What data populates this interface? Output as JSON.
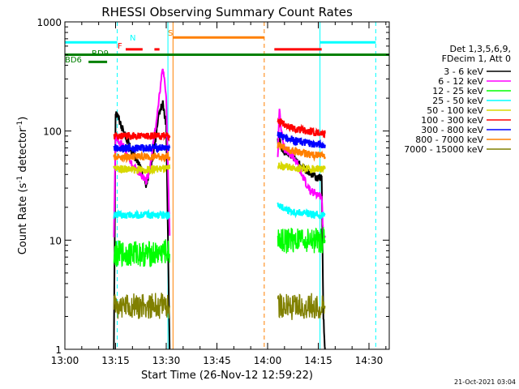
{
  "chart_data": {
    "type": "line",
    "title": "RHESSI Observing Summary Count Rates",
    "xlabel": "Start Time (26-Nov-12 12:59:22)",
    "ylabel_main": "Count Rate (s",
    "ylabel_sup1": "-1",
    "ylabel_mid": " detector",
    "ylabel_sup2": "-1",
    "ylabel_end": ")",
    "x_unit": "minutes since 13:00",
    "xlim": [
      0,
      96
    ],
    "ylim": [
      1,
      1000
    ],
    "yscale": "log",
    "grid": false,
    "x_ticks": [
      {
        "label": "13:00",
        "value": 0
      },
      {
        "label": "13:15",
        "value": 15
      },
      {
        "label": "13:30",
        "value": 30
      },
      {
        "label": "13:45",
        "value": 45
      },
      {
        "label": "14:00",
        "value": 60
      },
      {
        "label": "14:15",
        "value": 75
      },
      {
        "label": "14:30",
        "value": 90
      }
    ],
    "y_ticks": [
      {
        "label": "1",
        "value": 1
      },
      {
        "label": "10",
        "value": 10
      },
      {
        "label": "100",
        "value": 100
      },
      {
        "label": "1000",
        "value": 1000
      }
    ],
    "legend": {
      "placement": "right",
      "header": [
        "Det 1,3,5,6,9,",
        "FDecim 1, Att 0"
      ]
    },
    "series": [
      {
        "name": "3 - 6 keV",
        "color": "#000000",
        "segments": [
          {
            "x": [
              14.5,
              15,
              16,
              17,
              18,
              19,
              20,
              21,
              22,
              23,
              24,
              25,
              26,
              27,
              28,
              29,
              30,
              31
            ],
            "y": [
              1,
              150,
              130,
              105,
              90,
              75,
              62,
              55,
              50,
              40,
              32,
              40,
              60,
              90,
              150,
              180,
              110,
              1
            ]
          },
          {
            "x": [
              63,
              63.5,
              64,
              65,
              66,
              67,
              68,
              69,
              70,
              71,
              72,
              73,
              74,
              75,
              76,
              76.5,
              77
            ],
            "y": [
              80,
              85,
              70,
              65,
              65,
              60,
              55,
              52,
              48,
              45,
              42,
              40,
              38,
              37,
              38,
              2,
              1
            ]
          }
        ]
      },
      {
        "name": "6 - 12 keV",
        "color": "#ff00ff",
        "segments": [
          {
            "x": [
              14.5,
              15,
              16,
              17,
              18,
              19,
              20,
              21,
              22,
              23,
              24,
              25,
              26,
              27,
              28,
              29,
              30,
              31
            ],
            "y": [
              11,
              90,
              80,
              75,
              65,
              55,
              48,
              45,
              42,
              38,
              35,
              42,
              70,
              120,
              220,
              380,
              200,
              11
            ]
          },
          {
            "x": [
              63,
              63.5,
              64,
              65,
              66,
              67,
              68,
              69,
              70,
              71,
              72,
              73,
              74,
              75,
              76,
              76.5,
              77
            ],
            "y": [
              55,
              170,
              100,
              70,
              65,
              60,
              55,
              48,
              40,
              35,
              30,
              28,
              27,
              26,
              25,
              11,
              11
            ]
          }
        ]
      },
      {
        "name": "12 - 25 keV",
        "color": "#00ff00",
        "segments": [
          {
            "x": [
              14.5,
              15,
              18,
              21,
              24,
              27,
              30,
              31
            ],
            "y": [
              7.5,
              7.5,
              7.5,
              7.6,
              7.4,
              7.5,
              7.8,
              7.5
            ]
          },
          {
            "x": [
              63,
              65,
              68,
              71,
              74,
              76.5,
              77
            ],
            "y": [
              10,
              10,
              9.8,
              10,
              10,
              10,
              10
            ]
          }
        ]
      },
      {
        "name": "25 - 50 keV",
        "color": "#00ffff",
        "segments": [
          {
            "x": [
              14.5,
              15,
              18,
              21,
              24,
              27,
              30,
              31
            ],
            "y": [
              17,
              17,
              17,
              17,
              17,
              17,
              17,
              17
            ]
          },
          {
            "x": [
              63,
              64,
              66,
              68,
              70,
              72,
              74,
              76.5,
              77
            ],
            "y": [
              22,
              20,
              19,
              18,
              18,
              17.5,
              17,
              17,
              17
            ]
          }
        ]
      },
      {
        "name": "50 - 100 keV",
        "color": "#d8d800",
        "segments": [
          {
            "x": [
              14.5,
              15,
              18,
              21,
              24,
              27,
              30,
              31
            ],
            "y": [
              45,
              45,
              45,
              44,
              44,
              45,
              45,
              45
            ]
          },
          {
            "x": [
              63,
              65,
              68,
              71,
              74,
              76.5,
              77
            ],
            "y": [
              48,
              47,
              46,
              45,
              45,
              45,
              45
            ]
          }
        ]
      },
      {
        "name": "100 - 300 keV",
        "color": "#ff0000",
        "segments": [
          {
            "x": [
              14.5,
              15,
              18,
              21,
              24,
              27,
              30,
              31
            ],
            "y": [
              90,
              90,
              90,
              90,
              90,
              90,
              90,
              90
            ]
          },
          {
            "x": [
              63,
              65,
              68,
              71,
              74,
              76.5,
              77
            ],
            "y": [
              125,
              115,
              105,
              100,
              97,
              96,
              95
            ]
          }
        ]
      },
      {
        "name": "300 - 800 keV",
        "color": "#0000ff",
        "segments": [
          {
            "x": [
              14.5,
              15,
              18,
              21,
              24,
              27,
              30,
              31
            ],
            "y": [
              70,
              70,
              70,
              70,
              70,
              70,
              70,
              70
            ]
          },
          {
            "x": [
              63,
              65,
              68,
              71,
              74,
              76.5,
              77
            ],
            "y": [
              95,
              88,
              82,
              78,
              76,
              75,
              75
            ]
          }
        ]
      },
      {
        "name": "800 - 7000 keV",
        "color": "#ff8000",
        "segments": [
          {
            "x": [
              14.5,
              15,
              18,
              21,
              24,
              27,
              30,
              31
            ],
            "y": [
              58,
              58,
              58,
              58,
              58,
              58,
              58,
              58
            ]
          },
          {
            "x": [
              63,
              65,
              68,
              71,
              74,
              76.5,
              77
            ],
            "y": [
              75,
              70,
              65,
              62,
              60,
              59,
              58
            ]
          }
        ]
      },
      {
        "name": "7000 - 15000 keV",
        "color": "#808000",
        "segments": [
          {
            "x": [
              14.5,
              15,
              18,
              21,
              24,
              27,
              30,
              31
            ],
            "y": [
              2.5,
              2.5,
              2.4,
              2.5,
              2.5,
              2.5,
              2.5,
              2.5
            ]
          },
          {
            "x": [
              63,
              65,
              68,
              71,
              74,
              76.5,
              77
            ],
            "y": [
              2.5,
              2.5,
              2.4,
              2.5,
              2.5,
              2.5,
              2.5
            ]
          }
        ]
      }
    ],
    "vertical_markers": [
      {
        "x": 0,
        "color": "#00ffff",
        "style": "solid"
      },
      {
        "x": 15.5,
        "color": "#00ffff",
        "style": "dashed"
      },
      {
        "x": 30.5,
        "color": "#00ffff",
        "style": "solid"
      },
      {
        "x": 32,
        "color": "#ff8000",
        "style": "solid"
      },
      {
        "x": 59,
        "color": "#ff8000",
        "style": "dashed"
      },
      {
        "x": 75.5,
        "color": "#00ffff",
        "style": "solid"
      },
      {
        "x": 92,
        "color": "#00ffff",
        "style": "dashed"
      }
    ],
    "status_bars": [
      {
        "label": "",
        "color": "#00ffff",
        "y": 650,
        "ranges": [
          [
            0,
            15.5
          ],
          [
            75.5,
            92
          ]
        ]
      },
      {
        "label": "N",
        "color": "#00ffff",
        "y": 650,
        "ranges": []
      },
      {
        "label": "S",
        "color": "#ff8000",
        "y": 720,
        "ranges": [
          [
            32,
            59
          ]
        ]
      },
      {
        "label": "F",
        "color": "#ff0000",
        "y": 560,
        "ranges": [
          [
            18,
            23
          ],
          [
            26.5,
            28
          ],
          [
            62,
            76
          ]
        ]
      },
      {
        "label": "RD9",
        "color": "#008000",
        "y": 500,
        "ranges": [
          [
            0,
            96
          ]
        ]
      },
      {
        "label": "BD6",
        "color": "#008000",
        "y": 430,
        "ranges": [
          [
            7,
            12.5
          ]
        ]
      }
    ],
    "footer_timestamp": "21-Oct-2021 03:04"
  }
}
